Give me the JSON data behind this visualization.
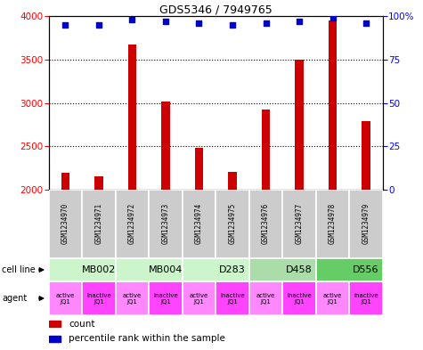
{
  "title": "GDS5346 / 7949765",
  "samples": [
    "GSM1234970",
    "GSM1234971",
    "GSM1234972",
    "GSM1234973",
    "GSM1234974",
    "GSM1234975",
    "GSM1234976",
    "GSM1234977",
    "GSM1234978",
    "GSM1234979"
  ],
  "counts": [
    2200,
    2150,
    3680,
    3020,
    2480,
    2210,
    2930,
    3500,
    3950,
    2790
  ],
  "percentiles": [
    95,
    95,
    98,
    97,
    96,
    95,
    96,
    97,
    99,
    96
  ],
  "cell_lines": [
    {
      "label": "MB002",
      "start": 0,
      "end": 2,
      "color": "#ccf5cc"
    },
    {
      "label": "MB004",
      "start": 2,
      "end": 4,
      "color": "#ccf5cc"
    },
    {
      "label": "D283",
      "start": 4,
      "end": 6,
      "color": "#ccf5cc"
    },
    {
      "label": "D458",
      "start": 6,
      "end": 8,
      "color": "#aaddaa"
    },
    {
      "label": "D556",
      "start": 8,
      "end": 10,
      "color": "#66cc66"
    }
  ],
  "agents": [
    "active\nJQ1",
    "inactive\nJQ1",
    "active\nJQ1",
    "inactive\nJQ1",
    "active\nJQ1",
    "inactive\nJQ1",
    "active\nJQ1",
    "inactive\nJQ1",
    "active\nJQ1",
    "inactive\nJQ1"
  ],
  "agent_active_color": "#ff88ff",
  "agent_inactive_color": "#ff44ff",
  "bar_color": "#cc0000",
  "dot_color": "#0000cc",
  "ylim_left": [
    2000,
    4000
  ],
  "ylim_right": [
    0,
    100
  ],
  "yticks_left": [
    2000,
    2500,
    3000,
    3500,
    4000
  ],
  "yticks_right": [
    0,
    25,
    50,
    75,
    100
  ],
  "sample_bg_color": "#cccccc",
  "background_color": "#ffffff",
  "bar_width": 0.25
}
